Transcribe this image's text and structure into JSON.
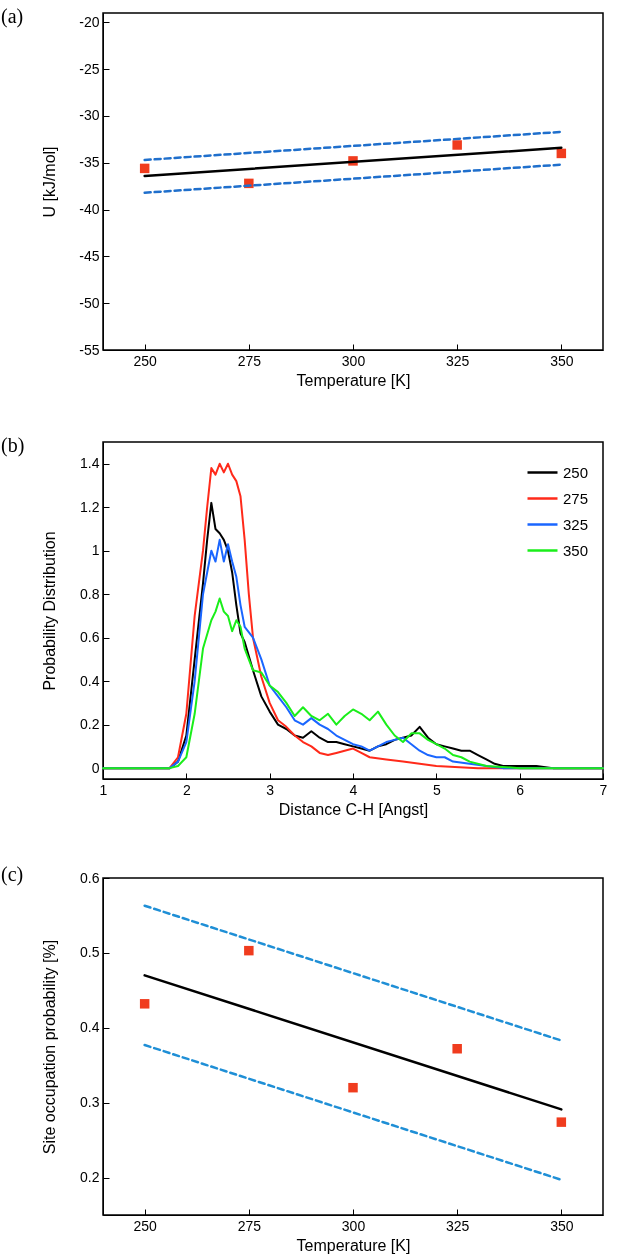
{
  "chart_data": [
    {
      "type": "scatter",
      "title": "(a)",
      "xlabel": "Temperature [K]",
      "ylabel": "U [kJ/mol]",
      "xlim": [
        240,
        360
      ],
      "ylim": [
        -55,
        -19
      ],
      "xticks": [
        250,
        275,
        300,
        325,
        350
      ],
      "yticks": [
        -55,
        -50,
        -45,
        -40,
        -35,
        -30,
        -25,
        -20
      ],
      "series": [
        {
          "marker": "square",
          "color": "#f03c1e",
          "x": [
            250,
            275,
            300,
            325,
            350
          ],
          "values": [
            -35.6,
            -37.2,
            -34.8,
            -33.1,
            -34.0
          ]
        },
        {
          "type": "line",
          "color": "#000000",
          "x": [
            250,
            350
          ],
          "values": [
            -36.4,
            -33.4
          ]
        },
        {
          "type": "line",
          "line_style": "dashed",
          "color": "#1f6fcc",
          "x": [
            250,
            350
          ],
          "values": [
            -34.7,
            -31.7
          ]
        },
        {
          "type": "line",
          "line_style": "dashed",
          "color": "#1f6fcc",
          "x": [
            250,
            350
          ],
          "values": [
            -38.2,
            -35.2
          ]
        }
      ]
    },
    {
      "type": "line",
      "title": "(b)",
      "xlabel": "Distance C-H [Angst]",
      "ylabel": "Probability Distribution",
      "xlim": [
        1,
        7
      ],
      "ylim": [
        -0.05,
        1.5
      ],
      "xticks": [
        1,
        2,
        3,
        4,
        5,
        6,
        7
      ],
      "yticks": [
        0,
        0.2,
        0.4,
        0.6,
        0.8,
        1,
        1.2,
        1.4
      ],
      "legend": "top right",
      "series": [
        {
          "name": "250",
          "color": "#000000",
          "x": [
            1,
            1.8,
            1.9,
            2.0,
            2.1,
            2.2,
            2.25,
            2.3,
            2.35,
            2.4,
            2.45,
            2.5,
            2.55,
            2.6,
            2.65,
            2.7,
            2.8,
            2.9,
            3.0,
            3.1,
            3.2,
            3.3,
            3.4,
            3.5,
            3.6,
            3.7,
            3.8,
            3.9,
            4.0,
            4.1,
            4.2,
            4.3,
            4.4,
            4.5,
            4.6,
            4.7,
            4.8,
            4.9,
            5.0,
            5.1,
            5.2,
            5.3,
            5.4,
            5.5,
            5.6,
            5.7,
            5.8,
            6.0,
            6.2,
            6.4,
            7
          ],
          "values": [
            0,
            0,
            0.03,
            0.15,
            0.5,
            0.85,
            1.05,
            1.22,
            1.1,
            1.08,
            1.05,
            1.0,
            0.9,
            0.75,
            0.62,
            0.58,
            0.45,
            0.33,
            0.26,
            0.2,
            0.18,
            0.15,
            0.14,
            0.17,
            0.14,
            0.12,
            0.12,
            0.11,
            0.1,
            0.09,
            0.08,
            0.1,
            0.11,
            0.13,
            0.14,
            0.15,
            0.19,
            0.14,
            0.11,
            0.1,
            0.09,
            0.08,
            0.08,
            0.06,
            0.04,
            0.02,
            0.01,
            0.01,
            0.01,
            0,
            0
          ]
        },
        {
          "name": "275",
          "color": "#ff2a1a",
          "x": [
            1,
            1.8,
            1.9,
            2.0,
            2.1,
            2.2,
            2.25,
            2.3,
            2.35,
            2.4,
            2.45,
            2.5,
            2.55,
            2.6,
            2.65,
            2.7,
            2.75,
            2.8,
            2.9,
            3.0,
            3.1,
            3.2,
            3.3,
            3.4,
            3.5,
            3.6,
            3.7,
            3.8,
            3.9,
            4.0,
            4.1,
            4.2,
            4.4,
            4.6,
            4.8,
            5.0,
            5.5,
            7
          ],
          "values": [
            0,
            0,
            0.05,
            0.25,
            0.7,
            1.0,
            1.2,
            1.38,
            1.35,
            1.4,
            1.36,
            1.4,
            1.35,
            1.32,
            1.25,
            1.05,
            0.8,
            0.6,
            0.42,
            0.3,
            0.22,
            0.19,
            0.15,
            0.12,
            0.1,
            0.07,
            0.06,
            0.07,
            0.08,
            0.09,
            0.07,
            0.05,
            0.04,
            0.03,
            0.02,
            0.01,
            0,
            0
          ]
        },
        {
          "name": "325",
          "color": "#1a66ff",
          "x": [
            1,
            1.8,
            1.9,
            2.0,
            2.1,
            2.2,
            2.25,
            2.3,
            2.35,
            2.4,
            2.45,
            2.5,
            2.55,
            2.6,
            2.65,
            2.7,
            2.8,
            2.9,
            3.0,
            3.1,
            3.2,
            3.3,
            3.4,
            3.5,
            3.6,
            3.7,
            3.8,
            3.9,
            4.0,
            4.1,
            4.2,
            4.3,
            4.4,
            4.5,
            4.6,
            4.7,
            4.8,
            4.9,
            5.0,
            5.1,
            5.2,
            5.4,
            5.6,
            5.8,
            7
          ],
          "values": [
            0,
            0,
            0.03,
            0.12,
            0.4,
            0.8,
            0.9,
            1.0,
            0.95,
            1.05,
            0.95,
            1.03,
            0.95,
            0.88,
            0.75,
            0.65,
            0.6,
            0.5,
            0.38,
            0.33,
            0.28,
            0.22,
            0.2,
            0.23,
            0.2,
            0.18,
            0.15,
            0.13,
            0.11,
            0.1,
            0.08,
            0.1,
            0.12,
            0.13,
            0.14,
            0.11,
            0.08,
            0.06,
            0.05,
            0.05,
            0.03,
            0.02,
            0.01,
            0,
            0
          ]
        },
        {
          "name": "350",
          "color": "#1aee1a",
          "x": [
            1,
            1.8,
            1.9,
            2.0,
            2.1,
            2.2,
            2.3,
            2.35,
            2.4,
            2.45,
            2.5,
            2.55,
            2.6,
            2.65,
            2.7,
            2.8,
            2.9,
            3.0,
            3.1,
            3.2,
            3.3,
            3.4,
            3.5,
            3.6,
            3.7,
            3.8,
            3.9,
            4.0,
            4.1,
            4.2,
            4.3,
            4.4,
            4.5,
            4.6,
            4.7,
            4.8,
            4.9,
            5.0,
            5.1,
            5.2,
            5.3,
            5.4,
            5.6,
            6.0,
            7
          ],
          "values": [
            0,
            0,
            0.01,
            0.05,
            0.25,
            0.55,
            0.68,
            0.72,
            0.78,
            0.72,
            0.7,
            0.63,
            0.68,
            0.65,
            0.55,
            0.45,
            0.44,
            0.38,
            0.35,
            0.3,
            0.24,
            0.28,
            0.24,
            0.22,
            0.25,
            0.2,
            0.24,
            0.27,
            0.25,
            0.22,
            0.26,
            0.2,
            0.15,
            0.12,
            0.16,
            0.16,
            0.13,
            0.11,
            0.09,
            0.06,
            0.05,
            0.03,
            0.01,
            0,
            0
          ]
        }
      ]
    },
    {
      "type": "scatter",
      "title": "(c)",
      "xlabel": "Temperature [K]",
      "ylabel": "Site occupation probability [%]",
      "xlim": [
        240,
        360
      ],
      "ylim": [
        0.15,
        0.6
      ],
      "xticks": [
        250,
        275,
        300,
        325,
        350
      ],
      "yticks": [
        0.2,
        0.3,
        0.4,
        0.5,
        0.6
      ],
      "series": [
        {
          "marker": "square",
          "color": "#f03c1e",
          "x": [
            250,
            275,
            300,
            325,
            350
          ],
          "values": [
            0.432,
            0.503,
            0.32,
            0.372,
            0.274
          ]
        },
        {
          "type": "line",
          "color": "#000000",
          "x": [
            250,
            350
          ],
          "values": [
            0.47,
            0.291
          ]
        },
        {
          "type": "line",
          "line_style": "dashed",
          "color": "#1f8fd6",
          "x": [
            250,
            350
          ],
          "values": [
            0.563,
            0.383
          ]
        },
        {
          "type": "line",
          "line_style": "dashed",
          "color": "#1f8fd6",
          "x": [
            250,
            350
          ],
          "values": [
            0.377,
            0.197
          ]
        }
      ]
    }
  ]
}
